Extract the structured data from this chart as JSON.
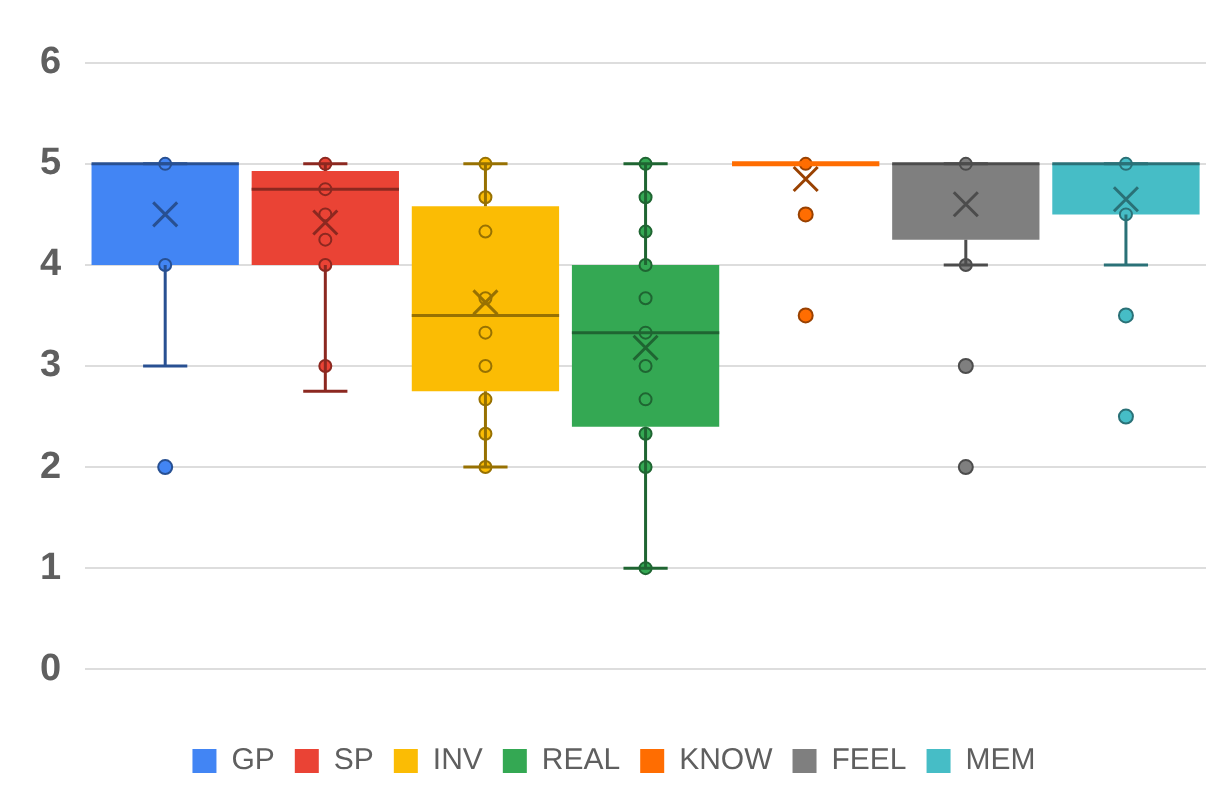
{
  "chart_data": {
    "type": "box",
    "categories": [
      null,
      null,
      null,
      null,
      null,
      null,
      null
    ],
    "ylim": [
      0,
      6
    ],
    "yticks": [
      0,
      1,
      2,
      3,
      4,
      5,
      6
    ],
    "grid": "y",
    "legend": "bottom",
    "marker": "circle",
    "series": [
      {
        "name": "GP",
        "color": "#4285f4",
        "boxes": [
          {
            "low": 3,
            "q1": 4,
            "median": 5,
            "q3": 5,
            "high": 5,
            "mean": 4.5,
            "outliers": [
              2
            ]
          },
          null,
          null,
          null,
          null,
          null,
          null
        ]
      },
      {
        "name": "SP",
        "color": "#ea4335",
        "boxes": [
          null,
          {
            "low": 2.75,
            "q1": 4,
            "median": 4.75,
            "q3": 4.93,
            "high": 5,
            "mean": 4.42
          },
          null,
          null,
          null,
          null,
          null
        ]
      },
      {
        "name": "INV",
        "color": "#fbbc04",
        "boxes": [
          null,
          null,
          {
            "low": 2,
            "q1": 2.75,
            "median": 3.5,
            "q3": 4.58,
            "high": 5,
            "mean": 3.63
          },
          null,
          null,
          null,
          null
        ]
      },
      {
        "name": "REAL",
        "color": "#34a853",
        "boxes": [
          null,
          null,
          null,
          {
            "low": 1,
            "q1": 2.4,
            "median": 3.33,
            "q3": 4,
            "high": 5,
            "mean": 3.18
          },
          null,
          null,
          null
        ]
      },
      {
        "name": "KNOW",
        "color": "#ff6d01",
        "boxes": [
          null,
          null,
          null,
          null,
          {
            "low": 5,
            "q1": 5,
            "median": 5,
            "q3": 5,
            "high": 5,
            "mean": 4.85,
            "outliers": [
              4.5,
              3.5
            ]
          },
          null,
          null
        ]
      },
      {
        "name": "FEEL",
        "color": "#7f7f7f",
        "boxes": [
          null,
          null,
          null,
          null,
          null,
          {
            "low": 4,
            "q1": 4.25,
            "median": 5,
            "q3": 5,
            "high": 5,
            "mean": 4.6,
            "outliers": [
              3,
              2
            ]
          },
          null
        ]
      },
      {
        "name": "MEM",
        "color": "#46bdc6",
        "boxes": [
          null,
          null,
          null,
          null,
          null,
          null,
          {
            "low": 4,
            "q1": 4.5,
            "median": 5,
            "q3": 5,
            "high": 5,
            "mean": 4.65,
            "outliers": [
              3.5,
              2.5
            ]
          }
        ]
      },
      {
        "type": "scatter",
        "colors": [
          "#4285f4",
          "#ea4335",
          "#fbbc04",
          "#34a853",
          "#ff6d01",
          "#7f7f7f",
          "#46bdc6"
        ],
        "values": [
          5,
          5,
          5,
          5,
          5,
          5,
          5
        ]
      },
      {
        "type": "scatter",
        "colors": [
          "#4285f4",
          "#ea4335",
          "#fbbc04",
          "#34a853",
          "#ff6d01",
          "#7f7f7f",
          "#46bdc6"
        ],
        "values": [
          4,
          4.75,
          4.67,
          4.67,
          null,
          4,
          4.5
        ]
      },
      {
        "type": "scatter",
        "colors": [
          "#4285f4",
          "#ea4335",
          "#fbbc04",
          "#34a853",
          "#ff6d01",
          "#7f7f7f",
          "#46bdc6"
        ],
        "values": [
          null,
          4.5,
          4.33,
          4.33,
          null,
          null,
          null
        ]
      },
      {
        "type": "scatter",
        "colors": [
          "#4285f4",
          "#ea4335",
          "#fbbc04",
          "#34a853",
          "#ff6d01",
          "#7f7f7f",
          "#46bdc6"
        ],
        "values": [
          null,
          4.25,
          3.67,
          4,
          null,
          null,
          null
        ]
      },
      {
        "type": "scatter",
        "colors": [
          "#4285f4",
          "#ea4335",
          "#fbbc04",
          "#34a853",
          "#ff6d01",
          "#7f7f7f",
          "#46bdc6"
        ],
        "values": [
          null,
          4,
          3.33,
          3.67,
          null,
          null,
          null
        ]
      },
      {
        "type": "scatter",
        "colors": [
          "#4285f4",
          "#ea4335",
          "#fbbc04",
          "#34a853",
          "#ff6d01",
          "#7f7f7f",
          "#46bdc6"
        ],
        "values": [
          null,
          3,
          3,
          3.33,
          null,
          null,
          null
        ]
      },
      {
        "type": "scatter",
        "colors": [
          "#4285f4",
          "#ea4335",
          "#fbbc04",
          "#34a853",
          "#ff6d01",
          "#7f7f7f",
          "#46bdc6"
        ],
        "values": [
          null,
          null,
          2.67,
          3,
          null,
          null,
          null
        ]
      },
      {
        "type": "scatter",
        "colors": [
          "#4285f4",
          "#ea4335",
          "#fbbc04",
          "#34a853",
          "#ff6d01",
          "#7f7f7f",
          "#46bdc6"
        ],
        "values": [
          null,
          null,
          2.33,
          2.67,
          null,
          null,
          null
        ]
      },
      {
        "type": "scatter",
        "colors": [
          "#4285f4",
          "#ea4335",
          "#fbbc04",
          "#34a853",
          "#ff6d01",
          "#7f7f7f",
          "#46bdc6"
        ],
        "values": [
          null,
          null,
          2,
          2.33,
          null,
          null,
          null
        ]
      },
      {
        "type": "scatter",
        "colors": [
          "#4285f4",
          "#ea4335",
          "#fbbc04",
          "#34a853",
          "#ff6d01",
          "#7f7f7f",
          "#46bdc6"
        ],
        "values": [
          null,
          null,
          null,
          2,
          null,
          null,
          null
        ]
      },
      {
        "type": "scatter",
        "colors": [
          "#4285f4",
          "#ea4335",
          "#fbbc04",
          "#34a853",
          "#ff6d01",
          "#7f7f7f",
          "#46bdc6"
        ],
        "values": [
          null,
          null,
          null,
          1,
          null,
          null,
          null
        ]
      }
    ]
  }
}
